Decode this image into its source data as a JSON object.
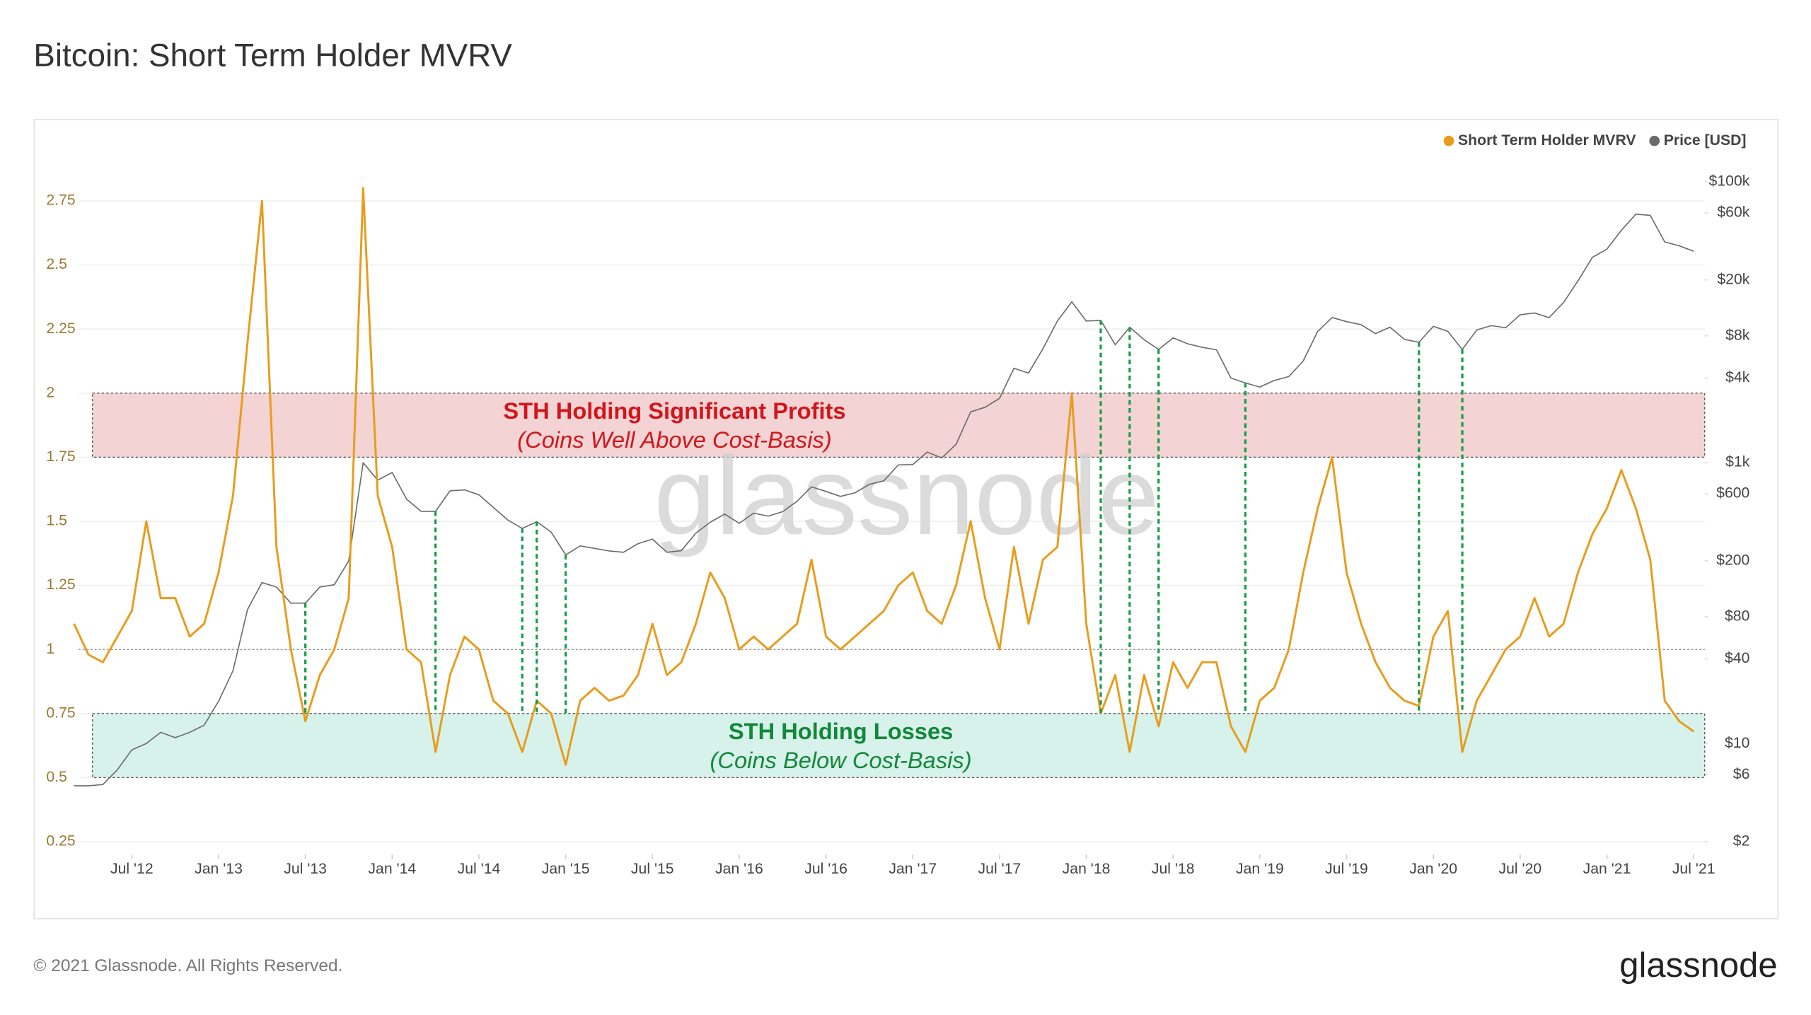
{
  "chart_data": {
    "type": "line",
    "title": "Bitcoin: Short Term Holder MVRV",
    "watermark": "glassnode",
    "footer": "© 2021 Glassnode. All Rights Reserved.",
    "brand": "glassnode",
    "legend": "top-right",
    "grid": true,
    "x": [
      "2012-03",
      "2012-04",
      "2012-05",
      "2012-06",
      "2012-07",
      "2012-08",
      "2012-09",
      "2012-10",
      "2012-11",
      "2012-12",
      "2013-01",
      "2013-02",
      "2013-03",
      "2013-04",
      "2013-05",
      "2013-06",
      "2013-07",
      "2013-08",
      "2013-09",
      "2013-10",
      "2013-11",
      "2013-12",
      "2014-01",
      "2014-02",
      "2014-03",
      "2014-04",
      "2014-05",
      "2014-06",
      "2014-07",
      "2014-08",
      "2014-09",
      "2014-10",
      "2014-11",
      "2014-12",
      "2015-01",
      "2015-02",
      "2015-03",
      "2015-04",
      "2015-05",
      "2015-06",
      "2015-07",
      "2015-08",
      "2015-09",
      "2015-10",
      "2015-11",
      "2015-12",
      "2016-01",
      "2016-02",
      "2016-03",
      "2016-04",
      "2016-05",
      "2016-06",
      "2016-07",
      "2016-08",
      "2016-09",
      "2016-10",
      "2016-11",
      "2016-12",
      "2017-01",
      "2017-02",
      "2017-03",
      "2017-04",
      "2017-05",
      "2017-06",
      "2017-07",
      "2017-08",
      "2017-09",
      "2017-10",
      "2017-11",
      "2017-12",
      "2018-01",
      "2018-02",
      "2018-03",
      "2018-04",
      "2018-05",
      "2018-06",
      "2018-07",
      "2018-08",
      "2018-09",
      "2018-10",
      "2018-11",
      "2018-12",
      "2019-01",
      "2019-02",
      "2019-03",
      "2019-04",
      "2019-05",
      "2019-06",
      "2019-07",
      "2019-08",
      "2019-09",
      "2019-10",
      "2019-11",
      "2019-12",
      "2020-01",
      "2020-02",
      "2020-03",
      "2020-04",
      "2020-05",
      "2020-06",
      "2020-07",
      "2020-08",
      "2020-09",
      "2020-10",
      "2020-11",
      "2020-12",
      "2021-01",
      "2021-02",
      "2021-03",
      "2021-04",
      "2021-05",
      "2021-06",
      "2021-07"
    ],
    "series": [
      {
        "name": "Short Term Holder MVRV",
        "color": "#e89c1c",
        "values": [
          1.1,
          0.98,
          0.95,
          1.05,
          1.15,
          1.5,
          1.2,
          1.2,
          1.05,
          1.1,
          1.3,
          1.6,
          2.2,
          2.75,
          1.4,
          1.0,
          0.72,
          0.9,
          1.0,
          1.2,
          2.8,
          1.6,
          1.4,
          1.0,
          0.95,
          0.6,
          0.9,
          1.05,
          1.0,
          0.8,
          0.75,
          0.6,
          0.8,
          0.75,
          0.55,
          0.8,
          0.85,
          0.8,
          0.82,
          0.9,
          1.1,
          0.9,
          0.95,
          1.1,
          1.3,
          1.2,
          1.0,
          1.05,
          1.0,
          1.05,
          1.1,
          1.35,
          1.05,
          1.0,
          1.05,
          1.1,
          1.15,
          1.25,
          1.3,
          1.15,
          1.1,
          1.25,
          1.5,
          1.2,
          1.0,
          1.4,
          1.1,
          1.35,
          1.4,
          2.0,
          1.1,
          0.75,
          0.9,
          0.6,
          0.9,
          0.7,
          0.95,
          0.85,
          0.95,
          0.95,
          0.7,
          0.6,
          0.8,
          0.85,
          1.0,
          1.3,
          1.55,
          1.75,
          1.3,
          1.1,
          0.95,
          0.85,
          0.8,
          0.78,
          1.05,
          1.15,
          0.6,
          0.8,
          0.9,
          1.0,
          1.05,
          1.2,
          1.05,
          1.1,
          1.3,
          1.45,
          1.55,
          1.7,
          1.55,
          1.35,
          0.8,
          0.72,
          0.68
        ]
      },
      {
        "name": "Price [USD]",
        "color": "#6b6b6b",
        "axis": "y2",
        "values": [
          5,
          5,
          5.1,
          6.5,
          9,
          10,
          12,
          11,
          12,
          13.5,
          20,
          33,
          90,
          140,
          130,
          100,
          100,
          130,
          135,
          200,
          1000,
          750,
          850,
          550,
          450,
          450,
          630,
          640,
          590,
          480,
          390,
          340,
          380,
          320,
          220,
          255,
          245,
          235,
          230,
          265,
          285,
          230,
          236,
          315,
          377,
          430,
          370,
          437,
          416,
          448,
          531,
          673,
          624,
          575,
          609,
          700,
          742,
          963,
          970,
          1190,
          1080,
          1350,
          2300,
          2480,
          2870,
          4700,
          4340,
          6470,
          10200,
          14000,
          10200,
          10300,
          6900,
          9200,
          7500,
          6400,
          7730,
          7030,
          6630,
          6370,
          4000,
          3700,
          3450,
          3850,
          4100,
          5300,
          8600,
          10800,
          10100,
          9600,
          8300,
          9200,
          7550,
          7200,
          9350,
          8600,
          6400,
          8800,
          9450,
          9140,
          11300,
          11650,
          10780,
          13800,
          19700,
          29000,
          33100,
          45200,
          58800,
          57700,
          37300,
          35000,
          32000
        ]
      }
    ],
    "xlim": [
      "2012-03",
      "2021-08"
    ],
    "xticks": [
      {
        "value": "2012-07",
        "label": "Jul '12"
      },
      {
        "value": "2013-01",
        "label": "Jan '13"
      },
      {
        "value": "2013-07",
        "label": "Jul '13"
      },
      {
        "value": "2014-01",
        "label": "Jan '14"
      },
      {
        "value": "2014-07",
        "label": "Jul '14"
      },
      {
        "value": "2015-01",
        "label": "Jan '15"
      },
      {
        "value": "2015-07",
        "label": "Jul '15"
      },
      {
        "value": "2016-01",
        "label": "Jan '16"
      },
      {
        "value": "2016-07",
        "label": "Jul '16"
      },
      {
        "value": "2017-01",
        "label": "Jan '17"
      },
      {
        "value": "2017-07",
        "label": "Jul '17"
      },
      {
        "value": "2018-01",
        "label": "Jan '18"
      },
      {
        "value": "2018-07",
        "label": "Jul '18"
      },
      {
        "value": "2019-01",
        "label": "Jan '19"
      },
      {
        "value": "2019-07",
        "label": "Jul '19"
      },
      {
        "value": "2020-01",
        "label": "Jan '20"
      },
      {
        "value": "2020-07",
        "label": "Jul '20"
      },
      {
        "value": "2021-01",
        "label": "Jan '21"
      },
      {
        "value": "2021-07",
        "label": "Jul '21"
      }
    ],
    "ylim": [
      0.2,
      3.0
    ],
    "yticks": [
      0.25,
      0.5,
      0.75,
      1,
      1.25,
      1.5,
      1.75,
      2,
      2.25,
      2.5,
      2.75
    ],
    "y2_log": true,
    "y2lim": [
      1.62,
      209000
    ],
    "y2ticks": [
      {
        "value": 2,
        "label": "$2"
      },
      {
        "value": 6,
        "label": "$6"
      },
      {
        "value": 10,
        "label": "$10"
      },
      {
        "value": 40,
        "label": "$40"
      },
      {
        "value": 80,
        "label": "$80"
      },
      {
        "value": 200,
        "label": "$200"
      },
      {
        "value": 600,
        "label": "$600"
      },
      {
        "value": 1000,
        "label": "$1k"
      },
      {
        "value": 4000,
        "label": "$4k"
      },
      {
        "value": 8000,
        "label": "$8k"
      },
      {
        "value": 20000,
        "label": "$20k"
      },
      {
        "value": 60000,
        "label": "$60k"
      },
      {
        "value": 100000,
        "label": "$100k"
      }
    ],
    "reference_line": 1,
    "bands": [
      {
        "from": 1.75,
        "to": 2,
        "color": "#f3d3d3",
        "text_color": "#d0161c",
        "title": "STH Holding Significant Profits",
        "subtitle": "(Coins Well Above Cost-Basis)"
      },
      {
        "from": 0.5,
        "to": 0.75,
        "color": "#d6f2ea",
        "text_color": "#13873a",
        "title": "STH Holding Losses",
        "subtitle": "(Coins Below Cost-Basis)"
      }
    ],
    "marker_color": "#1a9e4a",
    "marker_dates": [
      "2013-07",
      "2014-04",
      "2014-10",
      "2014-11",
      "2015-01",
      "2018-02",
      "2018-04",
      "2018-06",
      "2018-12",
      "2019-12",
      "2020-03"
    ]
  }
}
